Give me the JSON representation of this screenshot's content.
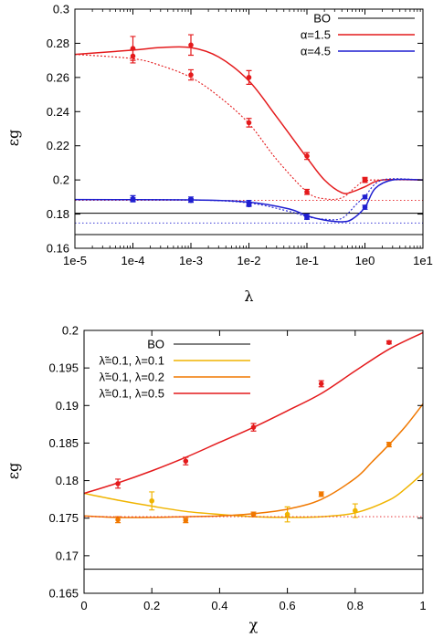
{
  "chart_data": [
    {
      "type": "line",
      "xlabel": "λ",
      "ylabel": "εg",
      "xscale": "log",
      "xlim": [
        1e-05,
        10
      ],
      "ylim": [
        0.16,
        0.3
      ],
      "xticks": [
        "1e-5",
        "1e-4",
        "1e-3",
        "1e-2",
        "1e-1",
        "1e0",
        "1e1"
      ],
      "xtick_values": [
        1e-05,
        0.0001,
        0.001,
        0.01,
        0.1,
        1,
        10
      ],
      "yticks": [
        "0.16",
        "0.18",
        "0.2",
        "0.22",
        "0.24",
        "0.26",
        "0.28",
        "0.3"
      ],
      "ytick_values": [
        0.16,
        0.18,
        0.2,
        0.22,
        0.24,
        0.26,
        0.28,
        0.3
      ],
      "legend_position": "top-right",
      "series": [
        {
          "name": "BO",
          "color": "#000000",
          "style": "solid",
          "x": [
            1e-05,
            10
          ],
          "y": [
            0.1805,
            0.1805
          ]
        },
        {
          "name": "",
          "color": "#000000",
          "style": "solid",
          "x": [
            1e-05,
            10
          ],
          "y": [
            0.168,
            0.168
          ]
        },
        {
          "name": "α=1.5",
          "color": "#e41a1c",
          "style": "solid",
          "x": [
            1e-05,
            0.0001,
            0.0003,
            0.001,
            0.003,
            0.01,
            0.03,
            0.1,
            0.2,
            0.4,
            0.6,
            1,
            2,
            10
          ],
          "y": [
            0.2735,
            0.276,
            0.2775,
            0.2775,
            0.272,
            0.258,
            0.237,
            0.213,
            0.2,
            0.1925,
            0.193,
            0.196,
            0.2,
            0.2
          ],
          "markers": {
            "x": [
              0.0001,
              0.001,
              0.01,
              0.1,
              1
            ],
            "y": [
              0.277,
              0.279,
              0.26,
              0.214,
              0.2
            ],
            "err": [
              0.007,
              0.006,
              0.004,
              0.002,
              0.0015
            ]
          }
        },
        {
          "name": "",
          "color": "#e41a1c",
          "style": "dotted",
          "x": [
            1e-05,
            0.0001,
            0.0003,
            0.001,
            0.003,
            0.01,
            0.03,
            0.1,
            0.2,
            0.4,
            0.7,
            1,
            2,
            10
          ],
          "y": [
            0.2735,
            0.271,
            0.267,
            0.26,
            0.249,
            0.233,
            0.212,
            0.193,
            0.189,
            0.1895,
            0.196,
            0.1995,
            0.2,
            0.2
          ],
          "markers": {
            "x": [
              0.0001,
              0.001,
              0.01,
              0.1,
              1
            ],
            "y": [
              0.2725,
              0.2615,
              0.2335,
              0.193,
              0.2
            ],
            "err": [
              0.004,
              0.003,
              0.0025,
              0.0015,
              0.001
            ]
          }
        },
        {
          "name": "",
          "color": "#e41a1c",
          "style": "dotted-thin",
          "x": [
            1e-05,
            10
          ],
          "y": [
            0.188,
            0.188
          ]
        },
        {
          "name": "α=4.5",
          "color": "#1f1fd0",
          "style": "solid",
          "x": [
            1e-05,
            0.001,
            0.01,
            0.05,
            0.1,
            0.2,
            0.4,
            0.6,
            1,
            1.5,
            3,
            10
          ],
          "y": [
            0.1885,
            0.1883,
            0.187,
            0.183,
            0.179,
            0.1765,
            0.1755,
            0.177,
            0.184,
            0.195,
            0.2,
            0.2
          ],
          "markers": {
            "x": [
              0.0001,
              0.001,
              0.01,
              0.1,
              1
            ],
            "y": [
              0.189,
              0.1885,
              0.1865,
              0.1785,
              0.184
            ],
            "err": [
              0.0018,
              0.0015,
              0.0015,
              0.0015,
              0.0012
            ]
          }
        },
        {
          "name": "",
          "color": "#1f1fd0",
          "style": "dotted",
          "x": [
            1e-05,
            0.001,
            0.01,
            0.05,
            0.1,
            0.2,
            0.4,
            0.7,
            1,
            2,
            10
          ],
          "y": [
            0.1885,
            0.1883,
            0.1865,
            0.1815,
            0.1785,
            0.177,
            0.1775,
            0.1855,
            0.1905,
            0.2,
            0.2
          ],
          "markers": {
            "x": [
              0.0001,
              0.001,
              0.01,
              0.1,
              1
            ],
            "y": [
              0.1885,
              0.188,
              0.1855,
              0.178,
              0.19
            ],
            "err": [
              0.001,
              0.001,
              0.001,
              0.001,
              0.001
            ]
          }
        },
        {
          "name": "",
          "color": "#1f1fd0",
          "style": "dotted-thin",
          "x": [
            1e-05,
            10
          ],
          "y": [
            0.1748,
            0.1748
          ]
        }
      ]
    },
    {
      "type": "line",
      "xlabel": "χ",
      "ylabel": "εg",
      "xlim": [
        0,
        1
      ],
      "ylim": [
        0.165,
        0.2
      ],
      "xticks": [
        "0",
        "0.2",
        "0.4",
        "0.6",
        "0.8",
        "1"
      ],
      "xtick_values": [
        0,
        0.2,
        0.4,
        0.6,
        0.8,
        1
      ],
      "yticks": [
        "0.165",
        "0.17",
        "0.175",
        "0.18",
        "0.185",
        "0.19",
        "0.195",
        "0.2"
      ],
      "ytick_values": [
        0.165,
        0.17,
        0.175,
        0.18,
        0.185,
        0.19,
        0.195,
        0.2
      ],
      "legend_position": "top-left",
      "series": [
        {
          "name": "BO",
          "color": "#000000",
          "style": "solid",
          "x": [
            0,
            1
          ],
          "y": [
            0.1682,
            0.1682
          ]
        },
        {
          "name": "λ̃=0.1, λ=0.1",
          "color": "#f0b400",
          "style": "solid",
          "x": [
            0,
            0.1,
            0.2,
            0.3,
            0.4,
            0.5,
            0.6,
            0.7,
            0.8,
            0.9,
            0.95,
            1
          ],
          "y": [
            0.1783,
            0.1774,
            0.1766,
            0.1759,
            0.1755,
            0.1752,
            0.1751,
            0.1752,
            0.1757,
            0.1774,
            0.179,
            0.181
          ],
          "markers": {
            "x": [
              0.2,
              0.6,
              0.8
            ],
            "y": [
              0.1773,
              0.1755,
              0.176
            ],
            "err": [
              0.0012,
              0.001,
              0.0009
            ]
          }
        },
        {
          "name": "λ̃=0.1, λ=0.2",
          "color": "#f07800",
          "style": "solid",
          "x": [
            0,
            0.1,
            0.2,
            0.3,
            0.4,
            0.5,
            0.6,
            0.7,
            0.8,
            0.85,
            0.9,
            0.95,
            1
          ],
          "y": [
            0.1753,
            0.1751,
            0.1751,
            0.1752,
            0.1753,
            0.1756,
            0.1762,
            0.1775,
            0.1803,
            0.1825,
            0.1848,
            0.1873,
            0.1902
          ],
          "markers": {
            "x": [
              0.1,
              0.3,
              0.5,
              0.7,
              0.9
            ],
            "y": [
              0.1748,
              0.1747,
              0.1755,
              0.1782,
              0.1848
            ],
            "err": [
              0.0004,
              0.0003,
              0.0003,
              0.0003,
              0.0003
            ]
          }
        },
        {
          "name": "λ̃=0.1, λ=0.5",
          "color": "#e41a1c",
          "style": "solid",
          "x": [
            0,
            0.1,
            0.2,
            0.3,
            0.4,
            0.5,
            0.6,
            0.7,
            0.8,
            0.9,
            1
          ],
          "y": [
            0.1783,
            0.1797,
            0.1813,
            0.1831,
            0.1851,
            0.1871,
            0.1893,
            0.1916,
            0.1946,
            0.1975,
            0.1997
          ],
          "markers": {
            "x": [
              0.1,
              0.3,
              0.5,
              0.7,
              0.9
            ],
            "y": [
              0.1796,
              0.1826,
              0.1871,
              0.1929,
              0.1984
            ],
            "err": [
              0.0006,
              0.0005,
              0.0005,
              0.0004,
              0.0002
            ]
          }
        },
        {
          "name": "",
          "color": "#e41a1c",
          "style": "dotted-thin",
          "x": [
            0,
            1
          ],
          "y": [
            0.1752,
            0.1752
          ]
        }
      ]
    }
  ]
}
